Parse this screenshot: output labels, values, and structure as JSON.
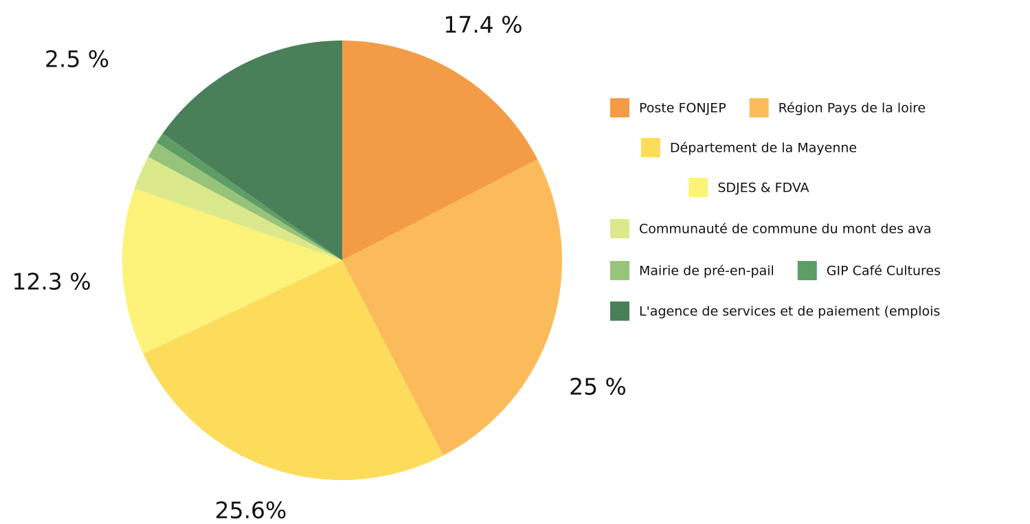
{
  "chart_data": {
    "type": "pie",
    "categories": [
      "Poste FONJEP",
      "Région Pays de la loire",
      "Département de la Mayenne",
      "SDJES & FDVA",
      "Communauté de commune du mont des ava",
      "Mairie de pré-en-pail",
      "GIP Café Cultures",
      "L'agence de services et de paiement (emplois"
    ],
    "values": [
      17.4,
      25,
      25.6,
      12.3,
      2.5,
      1.2,
      0.8,
      15.2
    ],
    "value_labels": [
      "17.4 %",
      "25 %",
      "25.6%",
      "12.3 %",
      "2.5 %",
      null,
      null,
      null
    ],
    "colors": [
      "#f39b46",
      "#fcbb5a",
      "#fddc5c",
      "#fdf27a",
      "#dbe98c",
      "#97c47a",
      "#5e9e66",
      "#4a8059"
    ],
    "legend": "right"
  }
}
